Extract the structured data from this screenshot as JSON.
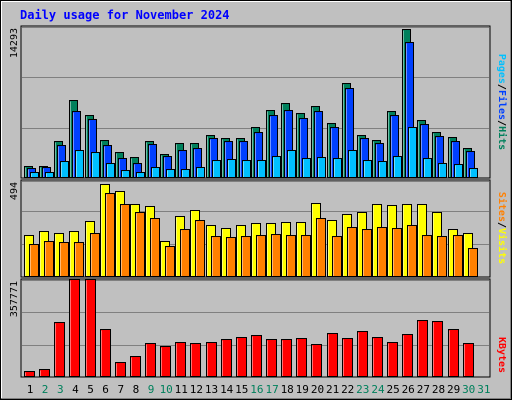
{
  "title": "Daily usage for November 2024",
  "colors": {
    "background": "#c0c0c0",
    "title": "#0000ff",
    "hits": "#00805c",
    "files": "#0040ff",
    "pages": "#00c0ff",
    "visits": "#ffff00",
    "sites": "#ff8000",
    "kbytes": "#ff0000"
  },
  "days": [
    "1",
    "2",
    "3",
    "4",
    "5",
    "6",
    "7",
    "8",
    "9",
    "10",
    "11",
    "12",
    "13",
    "14",
    "15",
    "16",
    "17",
    "18",
    "19",
    "20",
    "21",
    "22",
    "23",
    "24",
    "25",
    "26",
    "27",
    "28",
    "29",
    "30",
    "31"
  ],
  "weekend_days": [
    "2",
    "3",
    "9",
    "10",
    "16",
    "17",
    "23",
    "24",
    "30",
    "31"
  ],
  "chart_data": [
    {
      "type": "bar",
      "name": "hits-files-pages",
      "ymax_label": "14293",
      "ylim": [
        0,
        14293
      ],
      "legend": [
        "Pages",
        "Files",
        "Hits"
      ],
      "categories": [
        "1",
        "2",
        "3",
        "4",
        "5",
        "6",
        "7",
        "8",
        "9",
        "10",
        "11",
        "12",
        "13",
        "14",
        "15",
        "16",
        "17",
        "18",
        "19",
        "20",
        "21",
        "22",
        "23",
        "24",
        "25",
        "26",
        "27",
        "28",
        "29",
        "30",
        "31"
      ],
      "series": [
        {
          "name": "Hits",
          "values": [
            1100,
            1100,
            3500,
            7400,
            6000,
            3600,
            2400,
            1900,
            3500,
            2200,
            3300,
            3300,
            4100,
            3800,
            3800,
            4800,
            6500,
            7100,
            6200,
            6900,
            5200,
            9100,
            4100,
            3600,
            6400,
            14293,
            5500,
            4300,
            3900,
            2800,
            0
          ]
        },
        {
          "name": "Files",
          "values": [
            900,
            1000,
            3100,
            6400,
            5600,
            3100,
            1800,
            1400,
            3200,
            2000,
            2600,
            2800,
            3800,
            3500,
            3500,
            4300,
            6000,
            6500,
            5700,
            6400,
            4800,
            8600,
            3800,
            3300,
            6000,
            13000,
            5100,
            4000,
            3500,
            2500,
            0
          ]
        },
        {
          "name": "Pages",
          "values": [
            500,
            500,
            1500,
            2600,
            2400,
            1400,
            700,
            500,
            1000,
            800,
            800,
            1000,
            1600,
            1700,
            1600,
            1600,
            2000,
            2600,
            1800,
            1900,
            1800,
            2600,
            1600,
            1500,
            2000,
            4800,
            1800,
            1400,
            1300,
            900,
            0
          ]
        }
      ]
    },
    {
      "type": "bar",
      "name": "visits-sites",
      "ymax_label": "494",
      "ylim": [
        0,
        494
      ],
      "legend": [
        "Sites",
        "Visits"
      ],
      "categories": [
        "1",
        "2",
        "3",
        "4",
        "5",
        "6",
        "7",
        "8",
        "9",
        "10",
        "11",
        "12",
        "13",
        "14",
        "15",
        "16",
        "17",
        "18",
        "19",
        "20",
        "21",
        "22",
        "23",
        "24",
        "25",
        "26",
        "27",
        "28",
        "29",
        "30",
        "31"
      ],
      "series": [
        {
          "name": "Visits",
          "values": [
            220,
            240,
            230,
            240,
            290,
            490,
            450,
            380,
            370,
            185,
            320,
            350,
            270,
            255,
            270,
            280,
            280,
            285,
            285,
            390,
            300,
            330,
            340,
            380,
            375,
            385,
            380,
            340,
            250,
            230,
            0
          ]
        },
        {
          "name": "Sites",
          "values": [
            170,
            185,
            180,
            180,
            230,
            440,
            380,
            340,
            310,
            160,
            250,
            300,
            215,
            205,
            210,
            220,
            225,
            220,
            220,
            310,
            215,
            260,
            250,
            260,
            255,
            270,
            220,
            215,
            220,
            150,
            0
          ]
        }
      ]
    },
    {
      "type": "bar",
      "name": "kbytes",
      "ymax_label": "357771",
      "ylim": [
        0,
        357771
      ],
      "legend": [
        "KBytes"
      ],
      "categories": [
        "1",
        "2",
        "3",
        "4",
        "5",
        "6",
        "7",
        "8",
        "9",
        "10",
        "11",
        "12",
        "13",
        "14",
        "15",
        "16",
        "17",
        "18",
        "19",
        "20",
        "21",
        "22",
        "23",
        "24",
        "25",
        "26",
        "27",
        "28",
        "29",
        "30",
        "31"
      ],
      "series": [
        {
          "name": "KBytes",
          "values": [
            20000,
            25000,
            205000,
            370000,
            370000,
            180000,
            55000,
            75000,
            125000,
            115000,
            130000,
            125000,
            130000,
            140000,
            150000,
            155000,
            140000,
            140000,
            145000,
            120000,
            165000,
            145000,
            170000,
            150000,
            130000,
            160000,
            215000,
            210000,
            180000,
            125000,
            0
          ]
        }
      ]
    }
  ]
}
